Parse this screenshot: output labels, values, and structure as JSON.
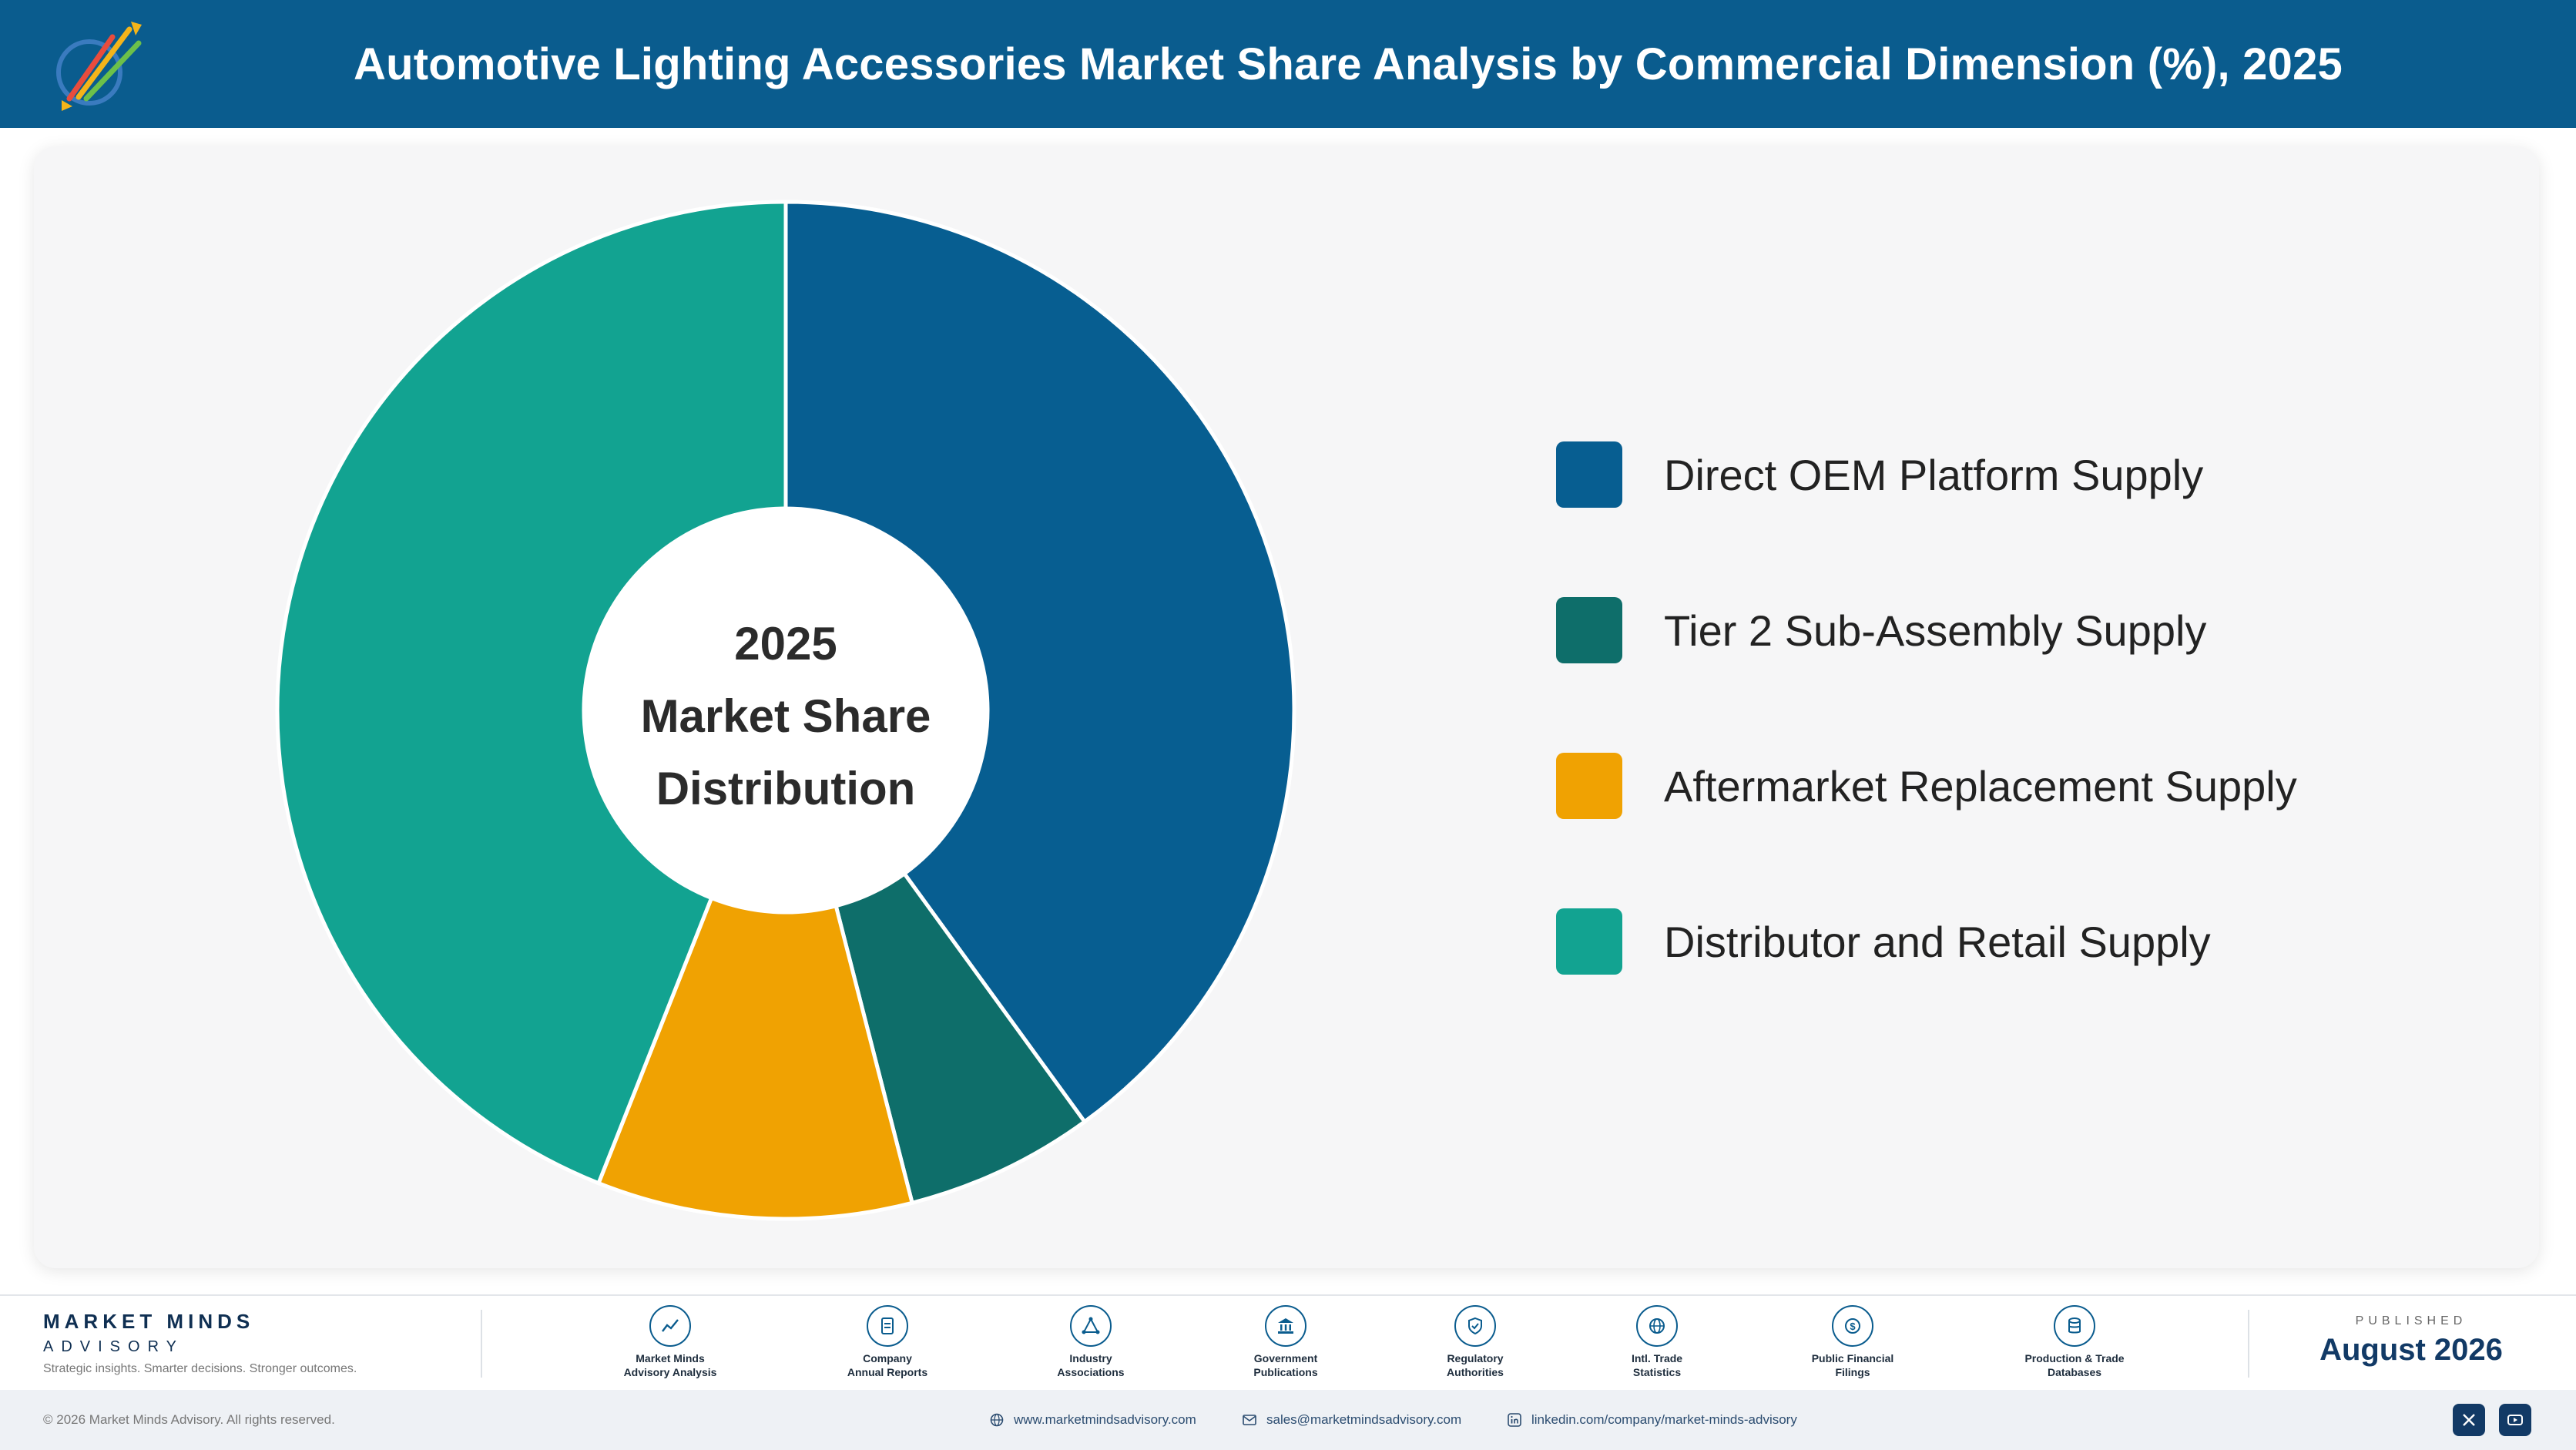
{
  "header": {
    "title": "Automotive Lighting Accessories Market Share Analysis by Commercial Dimension (%), 2025"
  },
  "chart_data": {
    "type": "pie",
    "variant": "donut",
    "center_text": [
      "2025",
      "Market Share",
      "Distribution"
    ],
    "categories": [
      "Direct OEM Platform Supply",
      "Tier 2 Sub-Assembly Supply",
      "Aftermarket Replacement Supply",
      "Distributor and Retail Supply"
    ],
    "values": [
      40,
      6,
      10,
      44
    ],
    "colors": [
      "#075e91",
      "#0e6e6a",
      "#f0a202",
      "#12a391"
    ],
    "legend_position": "right"
  },
  "footer": {
    "brand_name": "MARKET MINDS",
    "brand_sub": "ADVISORY",
    "tagline": "Strategic insights. Smarter decisions. Stronger outcomes.",
    "sources": [
      {
        "line1": "Market Minds",
        "line2": "Advisory Analysis",
        "icon": "chart-line-icon"
      },
      {
        "line1": "Company",
        "line2": "Annual Reports",
        "icon": "document-icon"
      },
      {
        "line1": "Industry",
        "line2": "Associations",
        "icon": "network-icon"
      },
      {
        "line1": "Government",
        "line2": "Publications",
        "icon": "government-building-icon"
      },
      {
        "line1": "Regulatory",
        "line2": "Authorities",
        "icon": "shield-check-icon"
      },
      {
        "line1": "Intl. Trade",
        "line2": "Statistics",
        "icon": "globe-icon"
      },
      {
        "line1": "Public Financial",
        "line2": "Filings",
        "icon": "dollar-coin-icon"
      },
      {
        "line1": "Production & Trade",
        "line2": "Databases",
        "icon": "database-icon"
      }
    ],
    "published_label": "PUBLISHED",
    "published_date": "August 2026"
  },
  "bottom_bar": {
    "copyright": "© 2026 Market Minds Advisory. All rights reserved.",
    "website": "www.marketmindsadvisory.com",
    "email": "sales@marketmindsadvisory.com",
    "linkedin": "linkedin.com/company/market-minds-advisory"
  }
}
